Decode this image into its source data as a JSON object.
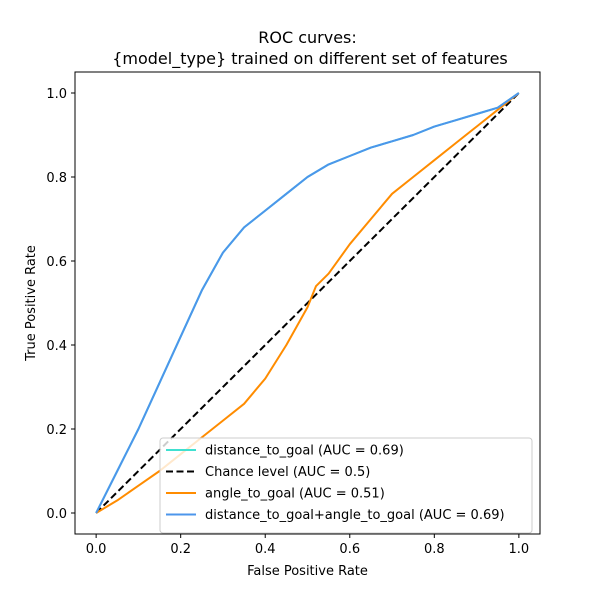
{
  "chart_data": {
    "type": "line",
    "title_lines": [
      "ROC curves:",
      "{model_type} trained on different set of features"
    ],
    "xlabel": "False Positive Rate",
    "ylabel": "True Positive Rate",
    "xlim": [
      -0.05,
      1.05
    ],
    "ylim": [
      -0.05,
      1.05
    ],
    "xticks": [
      0.0,
      0.2,
      0.4,
      0.6,
      0.8,
      1.0
    ],
    "yticks": [
      0.0,
      0.2,
      0.4,
      0.6,
      0.8,
      1.0
    ],
    "tick_labels": [
      "0.0",
      "0.2",
      "0.4",
      "0.6",
      "0.8",
      "1.0"
    ],
    "grid": false,
    "legend_position": "lower-right",
    "series": [
      {
        "name": "distance_to_goal (AUC = 0.69)",
        "color": "#40e0d0",
        "dash": "solid",
        "x": [
          0,
          0.02,
          0.05,
          0.1,
          0.15,
          0.2,
          0.25,
          0.3,
          0.35,
          0.4,
          0.45,
          0.5,
          0.55,
          0.6,
          0.65,
          0.7,
          0.75,
          0.8,
          0.85,
          0.9,
          0.95,
          1.0
        ],
        "y": [
          0,
          0.04,
          0.1,
          0.2,
          0.31,
          0.42,
          0.53,
          0.62,
          0.68,
          0.72,
          0.76,
          0.8,
          0.83,
          0.85,
          0.87,
          0.885,
          0.9,
          0.92,
          0.935,
          0.95,
          0.965,
          1.0
        ]
      },
      {
        "name": "Chance level (AUC = 0.5)",
        "color": "#000000",
        "dash": "dashed",
        "x": [
          0,
          1
        ],
        "y": [
          0,
          1
        ]
      },
      {
        "name": "angle_to_goal (AUC = 0.51)",
        "color": "#ff8c00",
        "dash": "solid",
        "x": [
          0,
          0.05,
          0.1,
          0.15,
          0.2,
          0.25,
          0.3,
          0.35,
          0.4,
          0.45,
          0.5,
          0.52,
          0.55,
          0.6,
          0.65,
          0.7,
          0.75,
          0.8,
          0.85,
          0.9,
          0.95,
          1.0
        ],
        "y": [
          0,
          0.03,
          0.065,
          0.1,
          0.14,
          0.18,
          0.22,
          0.26,
          0.32,
          0.4,
          0.49,
          0.54,
          0.57,
          0.64,
          0.7,
          0.76,
          0.8,
          0.84,
          0.88,
          0.92,
          0.96,
          1.0
        ]
      },
      {
        "name": "distance_to_goal+angle_to_goal (AUC = 0.69)",
        "color": "#4c96eb",
        "dash": "solid",
        "x": [
          0,
          0.02,
          0.05,
          0.1,
          0.15,
          0.2,
          0.25,
          0.3,
          0.35,
          0.4,
          0.45,
          0.5,
          0.55,
          0.6,
          0.65,
          0.7,
          0.75,
          0.8,
          0.85,
          0.9,
          0.95,
          1.0
        ],
        "y": [
          0,
          0.04,
          0.1,
          0.2,
          0.31,
          0.42,
          0.53,
          0.62,
          0.68,
          0.72,
          0.76,
          0.8,
          0.83,
          0.85,
          0.87,
          0.885,
          0.9,
          0.92,
          0.935,
          0.95,
          0.965,
          1.0
        ]
      }
    ]
  }
}
